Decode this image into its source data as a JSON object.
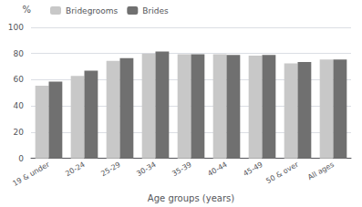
{
  "chart_data": {
    "type": "bar",
    "categories": [
      "19 & under",
      "20-24",
      "25-29",
      "30-34",
      "35-39",
      "40-44",
      "45-49",
      "50 & over",
      "All ages"
    ],
    "series": [
      {
        "name": "Bridegrooms",
        "color": "#c8c8c8",
        "values": [
          55.5,
          63.0,
          74.5,
          80.0,
          79.5,
          79.5,
          78.5,
          72.5,
          75.5
        ]
      },
      {
        "name": "Brides",
        "color": "#707070",
        "values": [
          58.5,
          67.0,
          76.5,
          81.5,
          79.5,
          79.0,
          79.0,
          73.5,
          75.5
        ]
      }
    ],
    "ylabel": "%",
    "xlabel": "Age groups (years)",
    "ylim": [
      0,
      100
    ],
    "yticks": [
      0,
      20,
      40,
      60,
      80,
      100
    ],
    "grid": true,
    "legend": "upper left"
  }
}
